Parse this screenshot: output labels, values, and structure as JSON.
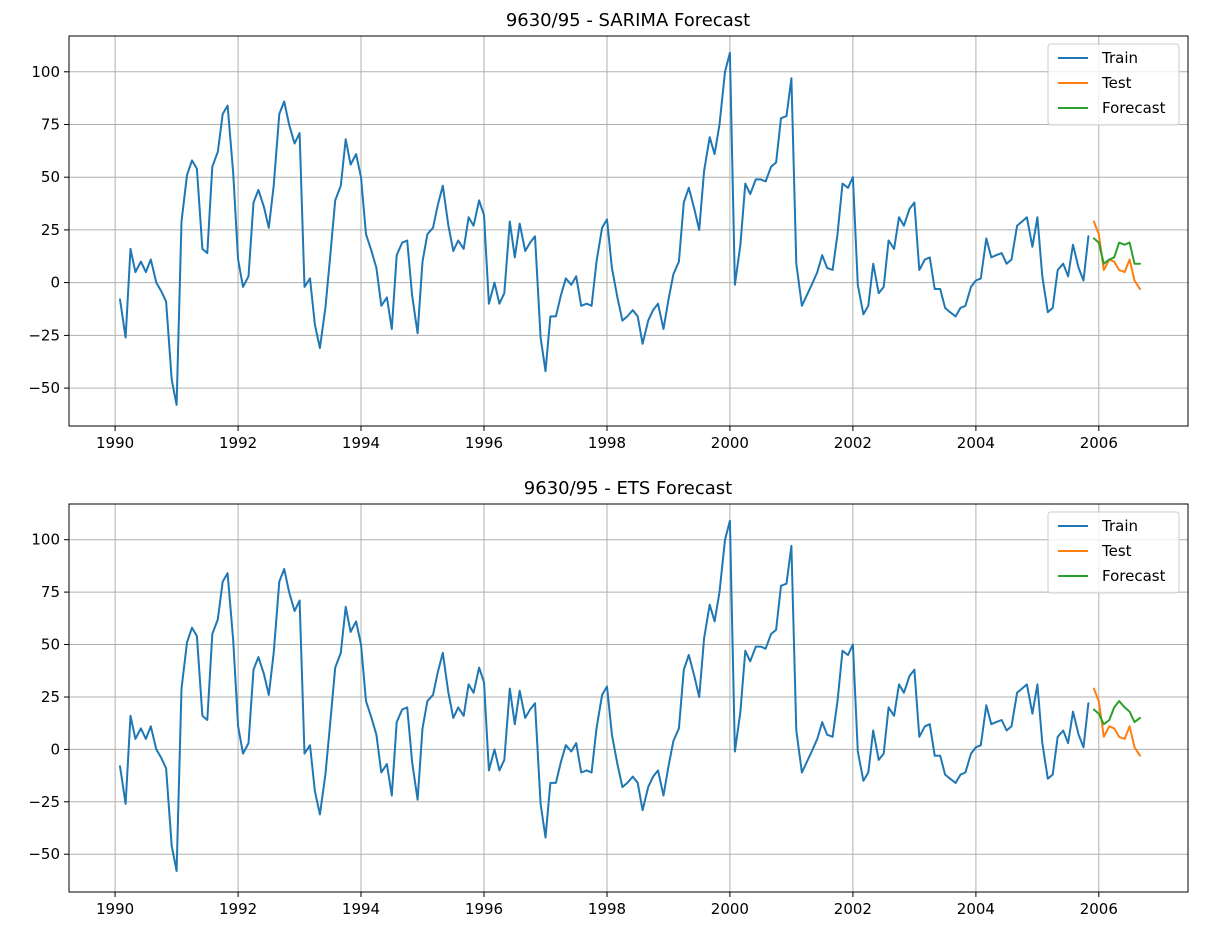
{
  "colors": {
    "train": "#1f77b4",
    "test": "#ff7f0e",
    "forecast": "#2ca02c"
  },
  "chart_data": [
    {
      "type": "line",
      "title": "9630/95 - SARIMA Forecast",
      "xlabel": "",
      "ylabel": "",
      "xlim": [
        1989.25,
        2007.45
      ],
      "ylim": [
        -68,
        117
      ],
      "x_ticks": [
        1990,
        1992,
        1994,
        1996,
        1998,
        2000,
        2002,
        2004,
        2006
      ],
      "x_tick_labels": [
        "1990",
        "1992",
        "1994",
        "1996",
        "1998",
        "2000",
        "2002",
        "2004",
        "2006"
      ],
      "y_ticks": [
        100,
        75,
        50,
        25,
        0,
        -25,
        -50
      ],
      "y_tick_labels": [
        "100",
        "75",
        "50",
        "25",
        "0",
        "−25",
        "−50"
      ],
      "grid": true,
      "legend": "top-right",
      "series": [
        {
          "name": "Train",
          "color": "#1f77b4",
          "x": [
            1990.08,
            1990.17,
            1990.25,
            1990.33,
            1990.42,
            1990.5,
            1990.58,
            1990.67,
            1990.75,
            1990.83,
            1990.92,
            1991.0,
            1991.08,
            1991.17,
            1991.25,
            1991.33,
            1991.42,
            1991.5,
            1991.58,
            1991.67,
            1991.75,
            1991.83,
            1991.92,
            1992.0,
            1992.08,
            1992.17,
            1992.25,
            1992.33,
            1992.42,
            1992.5,
            1992.58,
            1992.67,
            1992.75,
            1992.83,
            1992.92,
            1993.0,
            1993.08,
            1993.17,
            1993.25,
            1993.33,
            1993.42,
            1993.5,
            1993.58,
            1993.67,
            1993.75,
            1993.83,
            1993.92,
            1994.0,
            1994.08,
            1994.17,
            1994.25,
            1994.33,
            1994.42,
            1994.5,
            1994.58,
            1994.67,
            1994.75,
            1994.83,
            1994.92,
            1995.0,
            1995.08,
            1995.17,
            1995.25,
            1995.33,
            1995.42,
            1995.5,
            1995.58,
            1995.67,
            1995.75,
            1995.83,
            1995.92,
            1996.0,
            1996.08,
            1996.17,
            1996.25,
            1996.33,
            1996.42,
            1996.5,
            1996.58,
            1996.67,
            1996.75,
            1996.83,
            1996.92,
            1997.0,
            1997.08,
            1997.17,
            1997.25,
            1997.33,
            1997.42,
            1997.5,
            1997.58,
            1997.67,
            1997.75,
            1997.83,
            1997.92,
            1998.0,
            1998.08,
            1998.17,
            1998.25,
            1998.33,
            1998.42,
            1998.5,
            1998.58,
            1998.67,
            1998.75,
            1998.83,
            1998.92,
            1999.0,
            1999.08,
            1999.17,
            1999.25,
            1999.33,
            1999.42,
            1999.5,
            1999.58,
            1999.67,
            1999.75,
            1999.83,
            1999.92,
            2000.0,
            2000.08,
            2000.17,
            2000.25,
            2000.33,
            2000.42,
            2000.5,
            2000.58,
            2000.67,
            2000.75,
            2000.83,
            2000.92,
            2001.0,
            2001.08,
            2001.17,
            2001.25,
            2001.33,
            2001.42,
            2001.5,
            2001.58,
            2001.67,
            2001.75,
            2001.83,
            2001.92,
            2002.0,
            2002.08,
            2002.17,
            2002.25,
            2002.33,
            2002.42,
            2002.5,
            2002.58,
            2002.67,
            2002.75,
            2002.83,
            2002.92,
            2003.0,
            2003.08,
            2003.17,
            2003.25,
            2003.33,
            2003.42,
            2003.5,
            2003.58,
            2003.67,
            2003.75,
            2003.83,
            2003.92,
            2004.0,
            2004.08,
            2004.17,
            2004.25,
            2004.33,
            2004.42,
            2004.5,
            2004.58,
            2004.67,
            2004.75,
            2004.83,
            2004.92,
            2005.0,
            2005.08,
            2005.17,
            2005.25,
            2005.33,
            2005.42,
            2005.5,
            2005.58,
            2005.67,
            2005.75,
            2005.83
          ],
          "values": [
            -8,
            -26,
            16,
            5,
            10,
            5,
            11,
            0,
            -4,
            -9,
            -46,
            -58,
            29,
            51,
            58,
            54,
            16,
            14,
            55,
            62,
            80,
            84,
            52,
            11,
            -2,
            3,
            38,
            44,
            36,
            26,
            46,
            80,
            86,
            75,
            66,
            71,
            -2,
            2,
            -20,
            -31,
            -12,
            13,
            39,
            46,
            68,
            56,
            61,
            50,
            23,
            15,
            7,
            -11,
            -7,
            -22,
            13,
            19,
            20,
            -6,
            -24,
            10,
            23,
            26,
            37,
            46,
            27,
            15,
            20,
            16,
            31,
            27,
            39,
            32,
            -10,
            0,
            -10,
            -5,
            29,
            12,
            28,
            15,
            19,
            22,
            -26,
            -42,
            -16,
            -16,
            -6,
            2,
            -1,
            3,
            -11,
            -10,
            -11,
            10,
            26,
            30,
            7,
            -7,
            -18,
            -16,
            -13,
            -16,
            -29,
            -18,
            -13,
            -10,
            -22,
            -8,
            4,
            10,
            38,
            45,
            35,
            25,
            53,
            69,
            61,
            75,
            100,
            109,
            -1,
            18,
            47,
            42,
            49,
            49,
            48,
            55,
            57,
            78,
            79,
            97,
            9,
            -11,
            -6,
            -1,
            5,
            13,
            7,
            6,
            23,
            47,
            45,
            50,
            -1,
            -15,
            -11,
            9,
            -5,
            -2,
            20,
            16,
            31,
            27,
            35,
            38,
            6,
            11,
            12,
            -3,
            -3,
            -12,
            -14,
            -16,
            -12,
            -11,
            -2,
            1,
            2,
            21,
            12,
            13,
            14,
            9,
            11,
            27,
            29,
            31,
            17,
            31,
            3,
            -14,
            -12,
            6,
            9,
            3,
            18,
            7,
            1,
            22
          ]
        },
        {
          "name": "Test",
          "color": "#ff7f0e",
          "x": [
            2005.92,
            2006.0,
            2006.08,
            2006.17,
            2006.25,
            2006.33,
            2006.42,
            2006.5,
            2006.58,
            2006.67
          ],
          "values": [
            29,
            23,
            6,
            11,
            10,
            6,
            5,
            11,
            1,
            -3
          ]
        },
        {
          "name": "Forecast",
          "color": "#2ca02c",
          "x": [
            2005.92,
            2006.0,
            2006.08,
            2006.17,
            2006.25,
            2006.33,
            2006.42,
            2006.5,
            2006.58,
            2006.67
          ],
          "values": [
            21,
            19,
            9,
            11,
            12,
            19,
            18,
            19,
            9,
            9
          ]
        }
      ]
    },
    {
      "type": "line",
      "title": "9630/95 - ETS Forecast",
      "xlabel": "",
      "ylabel": "",
      "xlim": [
        1989.25,
        2007.45
      ],
      "ylim": [
        -68,
        117
      ],
      "x_ticks": [
        1990,
        1992,
        1994,
        1996,
        1998,
        2000,
        2002,
        2004,
        2006
      ],
      "x_tick_labels": [
        "1990",
        "1992",
        "1994",
        "1996",
        "1998",
        "2000",
        "2002",
        "2004",
        "2006"
      ],
      "y_ticks": [
        100,
        75,
        50,
        25,
        0,
        -25,
        -50
      ],
      "y_tick_labels": [
        "100",
        "75",
        "50",
        "25",
        "0",
        "−25",
        "−50"
      ],
      "grid": true,
      "legend": "top-right",
      "series": [
        {
          "name": "Train",
          "color": "#1f77b4",
          "x": [
            1990.08,
            1990.17,
            1990.25,
            1990.33,
            1990.42,
            1990.5,
            1990.58,
            1990.67,
            1990.75,
            1990.83,
            1990.92,
            1991.0,
            1991.08,
            1991.17,
            1991.25,
            1991.33,
            1991.42,
            1991.5,
            1991.58,
            1991.67,
            1991.75,
            1991.83,
            1991.92,
            1992.0,
            1992.08,
            1992.17,
            1992.25,
            1992.33,
            1992.42,
            1992.5,
            1992.58,
            1992.67,
            1992.75,
            1992.83,
            1992.92,
            1993.0,
            1993.08,
            1993.17,
            1993.25,
            1993.33,
            1993.42,
            1993.5,
            1993.58,
            1993.67,
            1993.75,
            1993.83,
            1993.92,
            1994.0,
            1994.08,
            1994.17,
            1994.25,
            1994.33,
            1994.42,
            1994.5,
            1994.58,
            1994.67,
            1994.75,
            1994.83,
            1994.92,
            1995.0,
            1995.08,
            1995.17,
            1995.25,
            1995.33,
            1995.42,
            1995.5,
            1995.58,
            1995.67,
            1995.75,
            1995.83,
            1995.92,
            1996.0,
            1996.08,
            1996.17,
            1996.25,
            1996.33,
            1996.42,
            1996.5,
            1996.58,
            1996.67,
            1996.75,
            1996.83,
            1996.92,
            1997.0,
            1997.08,
            1997.17,
            1997.25,
            1997.33,
            1997.42,
            1997.5,
            1997.58,
            1997.67,
            1997.75,
            1997.83,
            1997.92,
            1998.0,
            1998.08,
            1998.17,
            1998.25,
            1998.33,
            1998.42,
            1998.5,
            1998.58,
            1998.67,
            1998.75,
            1998.83,
            1998.92,
            1999.0,
            1999.08,
            1999.17,
            1999.25,
            1999.33,
            1999.42,
            1999.5,
            1999.58,
            1999.67,
            1999.75,
            1999.83,
            1999.92,
            2000.0,
            2000.08,
            2000.17,
            2000.25,
            2000.33,
            2000.42,
            2000.5,
            2000.58,
            2000.67,
            2000.75,
            2000.83,
            2000.92,
            2001.0,
            2001.08,
            2001.17,
            2001.25,
            2001.33,
            2001.42,
            2001.5,
            2001.58,
            2001.67,
            2001.75,
            2001.83,
            2001.92,
            2002.0,
            2002.08,
            2002.17,
            2002.25,
            2002.33,
            2002.42,
            2002.5,
            2002.58,
            2002.67,
            2002.75,
            2002.83,
            2002.92,
            2003.0,
            2003.08,
            2003.17,
            2003.25,
            2003.33,
            2003.42,
            2003.5,
            2003.58,
            2003.67,
            2003.75,
            2003.83,
            2003.92,
            2004.0,
            2004.08,
            2004.17,
            2004.25,
            2004.33,
            2004.42,
            2004.5,
            2004.58,
            2004.67,
            2004.75,
            2004.83,
            2004.92,
            2005.0,
            2005.08,
            2005.17,
            2005.25,
            2005.33,
            2005.42,
            2005.5,
            2005.58,
            2005.67,
            2005.75,
            2005.83
          ],
          "values": [
            -8,
            -26,
            16,
            5,
            10,
            5,
            11,
            0,
            -4,
            -9,
            -46,
            -58,
            29,
            51,
            58,
            54,
            16,
            14,
            55,
            62,
            80,
            84,
            52,
            11,
            -2,
            3,
            38,
            44,
            36,
            26,
            46,
            80,
            86,
            75,
            66,
            71,
            -2,
            2,
            -20,
            -31,
            -12,
            13,
            39,
            46,
            68,
            56,
            61,
            50,
            23,
            15,
            7,
            -11,
            -7,
            -22,
            13,
            19,
            20,
            -6,
            -24,
            10,
            23,
            26,
            37,
            46,
            27,
            15,
            20,
            16,
            31,
            27,
            39,
            32,
            -10,
            0,
            -10,
            -5,
            29,
            12,
            28,
            15,
            19,
            22,
            -26,
            -42,
            -16,
            -16,
            -6,
            2,
            -1,
            3,
            -11,
            -10,
            -11,
            10,
            26,
            30,
            7,
            -7,
            -18,
            -16,
            -13,
            -16,
            -29,
            -18,
            -13,
            -10,
            -22,
            -8,
            4,
            10,
            38,
            45,
            35,
            25,
            53,
            69,
            61,
            75,
            100,
            109,
            -1,
            18,
            47,
            42,
            49,
            49,
            48,
            55,
            57,
            78,
            79,
            97,
            9,
            -11,
            -6,
            -1,
            5,
            13,
            7,
            6,
            23,
            47,
            45,
            50,
            -1,
            -15,
            -11,
            9,
            -5,
            -2,
            20,
            16,
            31,
            27,
            35,
            38,
            6,
            11,
            12,
            -3,
            -3,
            -12,
            -14,
            -16,
            -12,
            -11,
            -2,
            1,
            2,
            21,
            12,
            13,
            14,
            9,
            11,
            27,
            29,
            31,
            17,
            31,
            3,
            -14,
            -12,
            6,
            9,
            3,
            18,
            7,
            1,
            22
          ]
        },
        {
          "name": "Test",
          "color": "#ff7f0e",
          "x": [
            2005.92,
            2006.0,
            2006.08,
            2006.17,
            2006.25,
            2006.33,
            2006.42,
            2006.5,
            2006.58,
            2006.67
          ],
          "values": [
            29,
            23,
            6,
            11,
            10,
            6,
            5,
            11,
            1,
            -3
          ]
        },
        {
          "name": "Forecast",
          "color": "#2ca02c",
          "x": [
            2005.92,
            2006.0,
            2006.08,
            2006.17,
            2006.25,
            2006.33,
            2006.42,
            2006.5,
            2006.58,
            2006.67
          ],
          "values": [
            19,
            17,
            12,
            14,
            20,
            23,
            20,
            18,
            13,
            15
          ]
        }
      ]
    }
  ]
}
